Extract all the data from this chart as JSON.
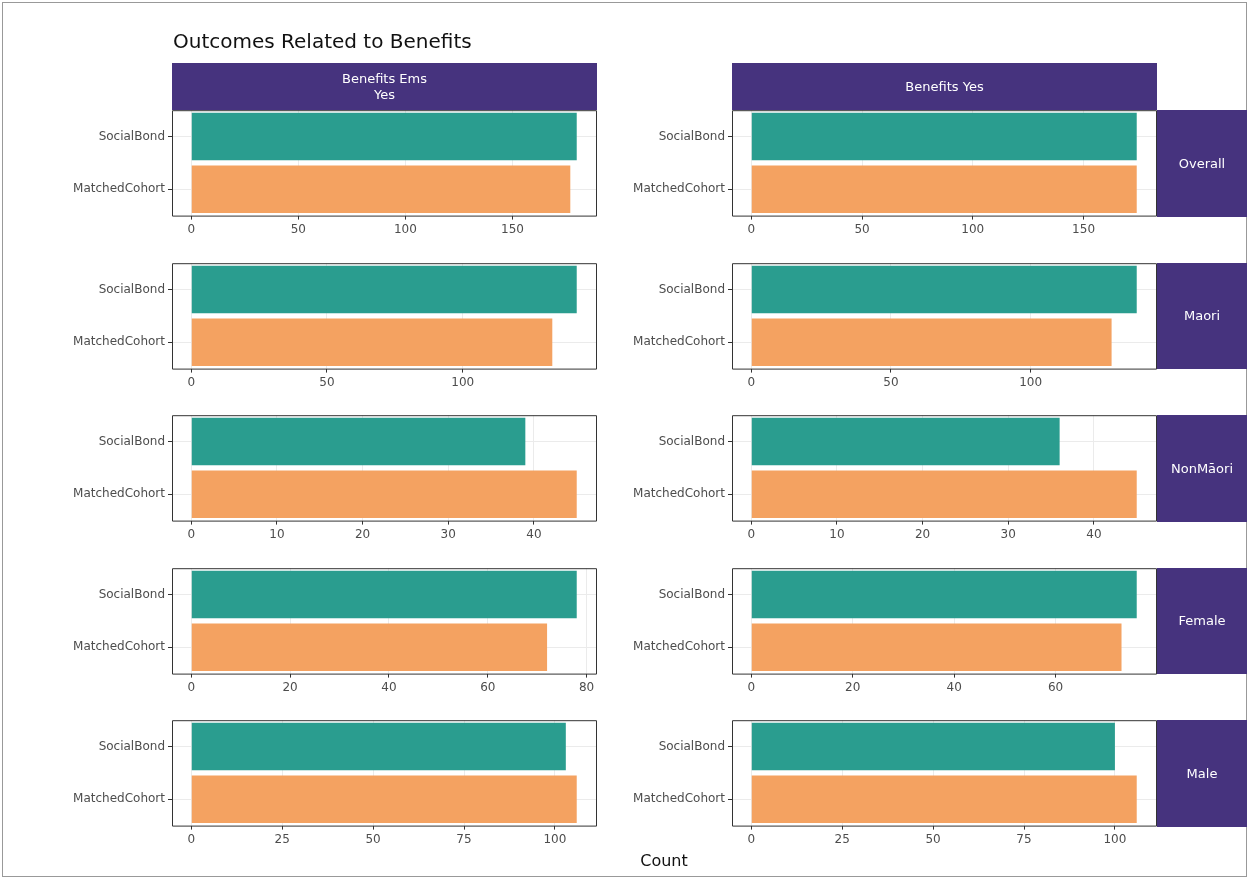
{
  "chart_data": [
    {
      "type": "bar",
      "orientation": "horizontal",
      "title": "Outcomes Related to Benefits",
      "subtitle": "Benefits Ems\nYes",
      "categories": [
        "SocialBond",
        "MatchedCohort"
      ],
      "values": [
        180,
        177
      ],
      "colors": [
        "#2a9d8f",
        "#f4a261"
      ],
      "xlim": [
        -9,
        189
      ],
      "xticks": [
        0,
        50,
        100,
        150
      ],
      "grid": true
    },
    {
      "type": "bar",
      "orientation": "horizontal",
      "subtitle": "Benefits Yes",
      "y2label": "Overall",
      "categories": [
        "SocialBond",
        "MatchedCohort"
      ],
      "values": [
        174,
        174
      ],
      "colors": [
        "#2a9d8f",
        "#f4a261"
      ],
      "xlim": [
        -8.7,
        182.7
      ],
      "xticks": [
        0,
        50,
        100,
        150
      ],
      "grid": true
    },
    {
      "type": "bar",
      "orientation": "horizontal",
      "categories": [
        "SocialBond",
        "MatchedCohort"
      ],
      "values": [
        142,
        133
      ],
      "colors": [
        "#2a9d8f",
        "#f4a261"
      ],
      "xlim": [
        -7.1,
        149.1
      ],
      "xticks": [
        0,
        50,
        100
      ],
      "grid": true
    },
    {
      "type": "bar",
      "orientation": "horizontal",
      "y2label": "Maori",
      "categories": [
        "SocialBond",
        "MatchedCohort"
      ],
      "values": [
        138,
        129
      ],
      "colors": [
        "#2a9d8f",
        "#f4a261"
      ],
      "xlim": [
        -6.9,
        144.9
      ],
      "xticks": [
        0,
        50,
        100
      ],
      "grid": true
    },
    {
      "type": "bar",
      "orientation": "horizontal",
      "categories": [
        "SocialBond",
        "MatchedCohort"
      ],
      "values": [
        39,
        45
      ],
      "colors": [
        "#2a9d8f",
        "#f4a261"
      ],
      "xlim": [
        -2.25,
        47.25
      ],
      "xticks": [
        0,
        10,
        20,
        30,
        40
      ],
      "grid": true
    },
    {
      "type": "bar",
      "orientation": "horizontal",
      "y2label": "NonMāori",
      "categories": [
        "SocialBond",
        "MatchedCohort"
      ],
      "values": [
        36,
        45
      ],
      "colors": [
        "#2a9d8f",
        "#f4a261"
      ],
      "xlim": [
        -2.25,
        47.25
      ],
      "xticks": [
        0,
        10,
        20,
        30,
        40
      ],
      "grid": true
    },
    {
      "type": "bar",
      "orientation": "horizontal",
      "categories": [
        "SocialBond",
        "MatchedCohort"
      ],
      "values": [
        78,
        72
      ],
      "colors": [
        "#2a9d8f",
        "#f4a261"
      ],
      "xlim": [
        -3.9,
        81.9
      ],
      "xticks": [
        0,
        20,
        40,
        60,
        80
      ],
      "grid": true
    },
    {
      "type": "bar",
      "orientation": "horizontal",
      "y2label": "Female",
      "categories": [
        "SocialBond",
        "MatchedCohort"
      ],
      "values": [
        76,
        73
      ],
      "colors": [
        "#2a9d8f",
        "#f4a261"
      ],
      "xlim": [
        -3.8,
        79.8
      ],
      "xticks": [
        0,
        20,
        40,
        60
      ],
      "grid": true
    },
    {
      "type": "bar",
      "orientation": "horizontal",
      "categories": [
        "SocialBond",
        "MatchedCohort"
      ],
      "values": [
        103,
        106
      ],
      "colors": [
        "#2a9d8f",
        "#f4a261"
      ],
      "xlim": [
        -5.3,
        111.3
      ],
      "xticks": [
        0,
        25,
        50,
        75,
        100
      ],
      "grid": true
    },
    {
      "type": "bar",
      "orientation": "horizontal",
      "y2label": "Male",
      "xlabel": "Count",
      "categories": [
        "SocialBond",
        "MatchedCohort"
      ],
      "values": [
        100,
        106
      ],
      "colors": [
        "#2a9d8f",
        "#f4a261"
      ],
      "xlim": [
        -5.3,
        111.3
      ],
      "xticks": [
        0,
        25,
        50,
        75,
        100
      ],
      "grid": true
    }
  ]
}
